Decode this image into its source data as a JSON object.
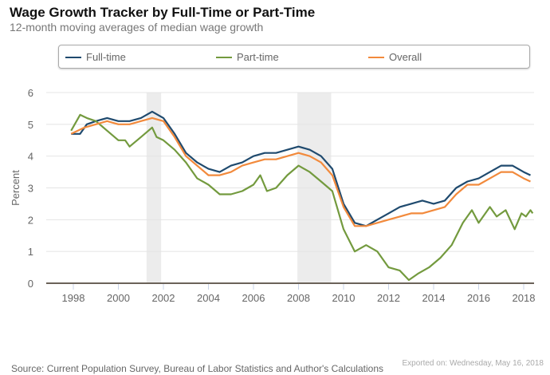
{
  "chart_data": {
    "type": "line",
    "title": "Wage Growth Tracker by Full-Time or Part-Time",
    "subtitle": "12-month moving averages of median wage growth",
    "ylabel": "Percent",
    "xlabel": "",
    "xlim": [
      1996.9,
      2018.5
    ],
    "ylim": [
      0,
      6
    ],
    "yticks": [
      "0",
      "1",
      "2",
      "3",
      "4",
      "5",
      "6"
    ],
    "xticks": [
      "1998",
      "2000",
      "2002",
      "2004",
      "2006",
      "2008",
      "2010",
      "2012",
      "2014",
      "2016",
      "2018"
    ],
    "grid": true,
    "legend_position": "top",
    "recessions": [
      [
        2001.25,
        2001.9
      ],
      [
        2007.95,
        2009.45
      ]
    ],
    "series": [
      {
        "name": "Full-time",
        "color": "#1f4a6e",
        "x": [
          1997.9,
          1998.3,
          1998.6,
          1999,
          1999.5,
          2000,
          2000.5,
          2001,
          2001.5,
          2002,
          2002.5,
          2003,
          2003.5,
          2004,
          2004.5,
          2005,
          2005.5,
          2006,
          2006.5,
          2007,
          2007.5,
          2008,
          2008.5,
          2009,
          2009.5,
          2010,
          2010.5,
          2011,
          2011.5,
          2012,
          2012.5,
          2013,
          2013.5,
          2014,
          2014.5,
          2015,
          2015.5,
          2016,
          2016.5,
          2017,
          2017.5,
          2018,
          2018.3
        ],
        "y": [
          4.7,
          4.7,
          5.0,
          5.1,
          5.2,
          5.1,
          5.1,
          5.2,
          5.4,
          5.2,
          4.7,
          4.1,
          3.8,
          3.6,
          3.5,
          3.7,
          3.8,
          4.0,
          4.1,
          4.1,
          4.2,
          4.3,
          4.2,
          4.0,
          3.6,
          2.5,
          1.9,
          1.8,
          2.0,
          2.2,
          2.4,
          2.5,
          2.6,
          2.5,
          2.6,
          3.0,
          3.2,
          3.3,
          3.5,
          3.7,
          3.7,
          3.5,
          3.4
        ]
      },
      {
        "name": "Part-time",
        "color": "#739a3e",
        "x": [
          1997.9,
          1998.3,
          1998.6,
          1999,
          1999.5,
          2000,
          2000.3,
          2000.5,
          2001,
          2001.5,
          2001.7,
          2002,
          2002.5,
          2003,
          2003.5,
          2004,
          2004.5,
          2005,
          2005.5,
          2006,
          2006.3,
          2006.6,
          2007,
          2007.5,
          2008,
          2008.5,
          2009,
          2009.5,
          2010,
          2010.5,
          2011,
          2011.5,
          2012,
          2012.5,
          2012.9,
          2013.3,
          2013.8,
          2014.3,
          2014.8,
          2015.3,
          2015.7,
          2016,
          2016.5,
          2016.8,
          2017.2,
          2017.6,
          2017.9,
          2018.1,
          2018.3,
          2018.4
        ],
        "y": [
          4.8,
          5.3,
          5.2,
          5.1,
          4.8,
          4.5,
          4.5,
          4.3,
          4.6,
          4.9,
          4.6,
          4.5,
          4.2,
          3.8,
          3.3,
          3.1,
          2.8,
          2.8,
          2.9,
          3.1,
          3.4,
          2.9,
          3.0,
          3.4,
          3.7,
          3.5,
          3.2,
          2.9,
          1.7,
          1.0,
          1.2,
          1.0,
          0.5,
          0.4,
          0.1,
          0.3,
          0.5,
          0.8,
          1.2,
          1.9,
          2.3,
          1.9,
          2.4,
          2.1,
          2.3,
          1.7,
          2.2,
          2.1,
          2.3,
          2.2
        ]
      },
      {
        "name": "Overall",
        "color": "#f28a3c",
        "x": [
          1997.9,
          1998.5,
          1999,
          1999.5,
          2000,
          2000.5,
          2001,
          2001.5,
          2002,
          2002.5,
          2003,
          2003.5,
          2004,
          2004.5,
          2005,
          2005.5,
          2006,
          2006.5,
          2007,
          2007.5,
          2008,
          2008.5,
          2009,
          2009.5,
          2010,
          2010.5,
          2011,
          2011.5,
          2012,
          2012.5,
          2013,
          2013.5,
          2014,
          2014.5,
          2015,
          2015.5,
          2016,
          2016.5,
          2017,
          2017.5,
          2018,
          2018.3
        ],
        "y": [
          4.7,
          4.9,
          5.0,
          5.1,
          5.0,
          5.0,
          5.1,
          5.2,
          5.1,
          4.6,
          4.0,
          3.7,
          3.4,
          3.4,
          3.5,
          3.7,
          3.8,
          3.9,
          3.9,
          4.0,
          4.1,
          4.0,
          3.8,
          3.4,
          2.4,
          1.8,
          1.8,
          1.9,
          2.0,
          2.1,
          2.2,
          2.2,
          2.3,
          2.4,
          2.8,
          3.1,
          3.1,
          3.3,
          3.5,
          3.5,
          3.3,
          3.2
        ]
      }
    ]
  },
  "footer": {
    "source": "Source: Current Population Survey, Bureau of Labor Statistics and Author's Calculations",
    "exported": "Exported on: Wednesday, May 16, 2018"
  }
}
